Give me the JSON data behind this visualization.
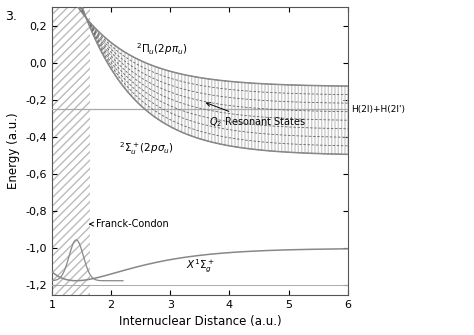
{
  "xlabel": "Internuclear Distance (a.u.)",
  "ylabel": "Energy (a.u.)",
  "xlim": [
    1.0,
    6.0
  ],
  "ylim": [
    -1.25,
    0.3
  ],
  "xticks": [
    1,
    2,
    3,
    4,
    5,
    6
  ],
  "yticks": [
    -1.2,
    -1.0,
    -0.8,
    -0.6,
    -0.4,
    -0.2,
    0.0,
    0.2
  ],
  "ytick_labels": [
    "-1,2",
    "-1,0",
    "-0,8",
    "-0,6",
    "-0,4",
    "-0,2",
    "0,0",
    "0,2"
  ],
  "bg_color": "#ffffff",
  "fc_xmax": 1.65,
  "H2l_asymptote": -0.25,
  "label_pi": "$^2\\Pi_u(2p\\pi_u)$",
  "label_sigma": "$^2\\Sigma_u^+(2p\\sigma_u)$",
  "label_X1": "$X^1\\Sigma_g^+$",
  "label_H2l": "H(2l)+H(2l')",
  "label_Q2": "$Q_2$ Resonant States",
  "label_FC": "Franck-Condon",
  "figure_label": "3.",
  "n_resonant": 9,
  "curve_gray": "#888888",
  "light_gray": "#aaaaaa",
  "dashed_gray": "#666666",
  "hatch_gray": "#bbbbbb"
}
